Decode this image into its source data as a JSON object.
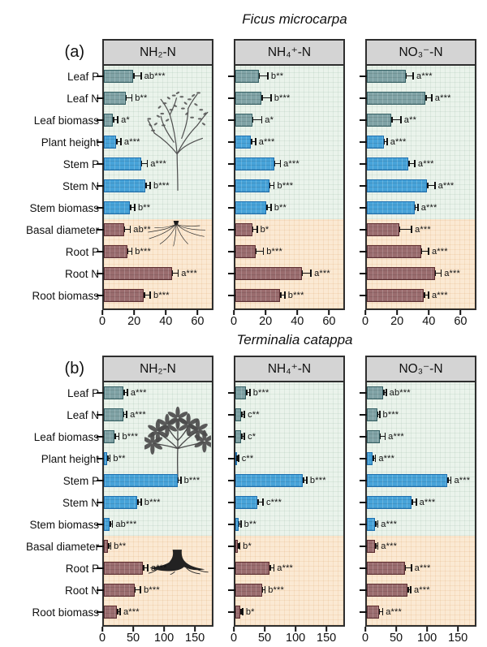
{
  "figure_type": "grouped horizontal bar charts with error bars",
  "colors": {
    "leaf_fill": "#7fa2a5",
    "leaf_border": "#356064",
    "stem_fill": "#47a3d9",
    "stem_border": "#1e6fae",
    "root_fill": "#9a6c6e",
    "root_border": "#5c2d30",
    "shoot_zone_bg": "#eaf3eb",
    "root_zone_bg": "#fbe9d3",
    "header_bg": "#d4d4d4",
    "frame": "#2e2e2e",
    "error_bar": "#111111"
  },
  "chart_data": [
    {
      "type": "bar",
      "orientation": "horizontal",
      "panel": "(a)",
      "panel_key": "a",
      "title": "Ficus microcarpa",
      "categories": [
        "Leaf P",
        "Leaf N",
        "Leaf biomass",
        "Plant height",
        "Stem P",
        "Stem N",
        "Stem biomass",
        "Basal diameter",
        "Root P",
        "Root N",
        "Root biomass"
      ],
      "category_groups": [
        "leaf",
        "leaf",
        "leaf",
        "stem",
        "stem",
        "stem",
        "stem",
        "root",
        "root",
        "root",
        "root"
      ],
      "xlim": [
        0,
        70
      ],
      "xticks": [
        0,
        20,
        40,
        60
      ],
      "grid": false,
      "subplots": [
        {
          "title": "NH₂-N",
          "values": [
            19,
            14,
            6,
            8,
            24,
            27,
            17,
            13,
            15,
            44,
            26
          ],
          "errors": [
            5,
            4,
            3,
            3,
            4,
            3,
            3,
            4,
            3,
            4,
            4
          ],
          "sig_labels": [
            "ab***",
            "b**",
            "a*",
            "a***",
            "a***",
            "b***",
            "b**",
            "ab**",
            "b***",
            "a***",
            "b***"
          ]
        },
        {
          "title": "NH₄⁺-N",
          "values": [
            15,
            17,
            11,
            10,
            25,
            22,
            20,
            11,
            13,
            43,
            29
          ],
          "errors": [
            6,
            6,
            6,
            3,
            4,
            3,
            3,
            3,
            5,
            6,
            3
          ],
          "sig_labels": [
            "b**",
            "b***",
            "a*",
            "a***",
            "a***",
            "b***",
            "b**",
            "b*",
            "b***",
            "a***",
            "b***"
          ]
        },
        {
          "title": "NO₃⁻-N",
          "values": [
            25,
            38,
            16,
            11,
            27,
            39,
            31,
            21,
            35,
            44,
            37
          ],
          "errors": [
            5,
            4,
            6,
            2,
            4,
            5,
            2,
            8,
            5,
            4,
            3
          ],
          "sig_labels": [
            "a***",
            "a***",
            "a**",
            "a***",
            "a***",
            "a***",
            "a***",
            "a***",
            "a***",
            "a***",
            "a***"
          ]
        }
      ]
    },
    {
      "type": "bar",
      "orientation": "horizontal",
      "panel": "(b)",
      "panel_key": "b",
      "title": "Terminalia catappa",
      "categories": [
        "Leaf P",
        "Leaf N",
        "Leaf biomass",
        "Plant height",
        "Stem P",
        "Stem N",
        "Stem biomass",
        "Basal diameter",
        "Root P",
        "Root N",
        "Root biomass"
      ],
      "category_groups": [
        "leaf",
        "leaf",
        "leaf",
        "stem",
        "stem",
        "stem",
        "stem",
        "root",
        "root",
        "root",
        "root"
      ],
      "xlim": [
        0,
        180
      ],
      "xticks": [
        0,
        50,
        100,
        150
      ],
      "grid": false,
      "subplots": [
        {
          "title": "NH₂-N",
          "values": [
            33,
            32,
            18,
            6,
            123,
            56,
            10,
            7,
            65,
            51,
            22
          ],
          "errors": [
            6,
            6,
            7,
            4,
            5,
            6,
            4,
            4,
            8,
            10,
            5
          ],
          "sig_labels": [
            "a***",
            "a***",
            "b***",
            "b**",
            "b***",
            "b***",
            "ab***",
            "b**",
            "a***",
            "b***",
            "a***"
          ]
        },
        {
          "title": "NH₄⁺-N",
          "values": [
            18,
            10,
            10,
            2,
            113,
            37,
            5,
            4,
            57,
            44,
            8
          ],
          "errors": [
            6,
            5,
            5,
            3,
            6,
            9,
            4,
            3,
            7,
            5,
            4
          ],
          "sig_labels": [
            "b***",
            "c**",
            "c*",
            "c**",
            "b***",
            "c***",
            "b**",
            "b*",
            "a***",
            "b***",
            "b*"
          ]
        },
        {
          "title": "NO₃⁻-N",
          "values": [
            27,
            17,
            21,
            10,
            134,
            75,
            14,
            14,
            63,
            68,
            20
          ],
          "errors": [
            5,
            4,
            9,
            4,
            6,
            7,
            4,
            4,
            11,
            5,
            6
          ],
          "sig_labels": [
            "ab***",
            "b***",
            "a***",
            "a***",
            "a***",
            "a***",
            "a***",
            "a***",
            "a***",
            "a***",
            "a***"
          ]
        }
      ]
    }
  ]
}
